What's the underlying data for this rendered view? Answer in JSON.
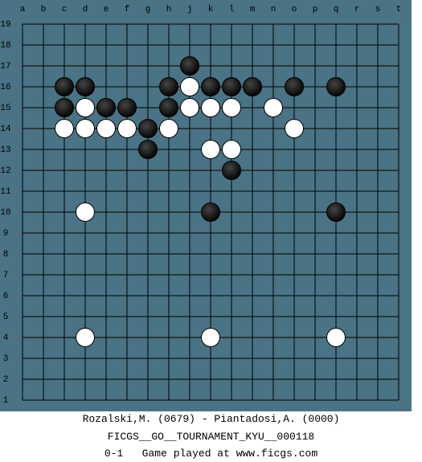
{
  "board": {
    "columns": [
      "a",
      "b",
      "c",
      "d",
      "e",
      "f",
      "g",
      "h",
      "j",
      "k",
      "l",
      "m",
      "n",
      "o",
      "p",
      "q",
      "r",
      "s",
      "t"
    ],
    "rows": [
      19,
      18,
      17,
      16,
      15,
      14,
      13,
      12,
      11,
      10,
      9,
      8,
      7,
      6,
      5,
      4,
      3,
      2,
      1
    ],
    "stones": [
      {
        "color": "black",
        "col": "j",
        "row": 17
      },
      {
        "color": "black",
        "col": "c",
        "row": 16
      },
      {
        "color": "black",
        "col": "d",
        "row": 16
      },
      {
        "color": "black",
        "col": "h",
        "row": 16
      },
      {
        "color": "white",
        "col": "j",
        "row": 16
      },
      {
        "color": "black",
        "col": "k",
        "row": 16
      },
      {
        "color": "black",
        "col": "l",
        "row": 16
      },
      {
        "color": "black",
        "col": "m",
        "row": 16
      },
      {
        "color": "black",
        "col": "o",
        "row": 16
      },
      {
        "color": "black",
        "col": "q",
        "row": 16
      },
      {
        "color": "black",
        "col": "c",
        "row": 15
      },
      {
        "color": "white",
        "col": "d",
        "row": 15
      },
      {
        "color": "black",
        "col": "e",
        "row": 15
      },
      {
        "color": "black",
        "col": "f",
        "row": 15
      },
      {
        "color": "black",
        "col": "h",
        "row": 15
      },
      {
        "color": "white",
        "col": "j",
        "row": 15
      },
      {
        "color": "white",
        "col": "k",
        "row": 15
      },
      {
        "color": "white",
        "col": "l",
        "row": 15
      },
      {
        "color": "white",
        "col": "n",
        "row": 15
      },
      {
        "color": "white",
        "col": "c",
        "row": 14
      },
      {
        "color": "white",
        "col": "d",
        "row": 14
      },
      {
        "color": "white",
        "col": "e",
        "row": 14
      },
      {
        "color": "white",
        "col": "f",
        "row": 14
      },
      {
        "color": "black",
        "col": "g",
        "row": 14
      },
      {
        "color": "white",
        "col": "h",
        "row": 14
      },
      {
        "color": "white",
        "col": "o",
        "row": 14
      },
      {
        "color": "black",
        "col": "g",
        "row": 13
      },
      {
        "color": "white",
        "col": "k",
        "row": 13
      },
      {
        "color": "white",
        "col": "l",
        "row": 13
      },
      {
        "color": "black",
        "col": "l",
        "row": 12
      },
      {
        "color": "white",
        "col": "d",
        "row": 10
      },
      {
        "color": "black",
        "col": "k",
        "row": 10
      },
      {
        "color": "black",
        "col": "q",
        "row": 10
      },
      {
        "color": "white",
        "col": "d",
        "row": 4
      },
      {
        "color": "white",
        "col": "k",
        "row": 4
      },
      {
        "color": "white",
        "col": "q",
        "row": 4
      }
    ]
  },
  "footer": {
    "players": "Rozalski,M. (0679) - Piantadosi,A. (0000)",
    "event": "FICGS__GO__TOURNAMENT_KYU__000118",
    "result": "0-1   Game played at www.ficgs.com"
  }
}
